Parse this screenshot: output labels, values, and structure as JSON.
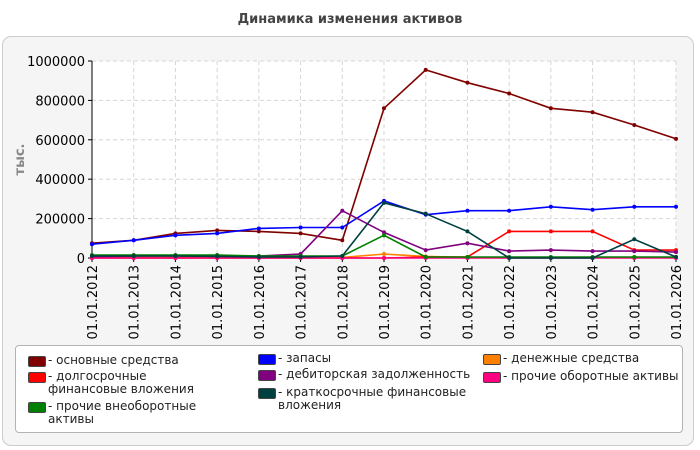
{
  "chart_data": {
    "type": "line",
    "title": "Динамика изменения активов",
    "ylabel": "тыс.",
    "xlabel": "",
    "ylim": [
      0,
      1000000
    ],
    "yticks": [
      0,
      200000,
      400000,
      600000,
      800000,
      1000000
    ],
    "grid": true,
    "legend_position": "bottom",
    "categories": [
      "01.01.2012",
      "01.01.2013",
      "01.01.2014",
      "01.01.2015",
      "01.01.2016",
      "01.01.2017",
      "01.01.2018",
      "01.01.2019",
      "01.01.2020",
      "01.01.2021",
      "01.01.2022",
      "01.01.2023",
      "01.01.2024",
      "01.01.2025",
      "01.01.2026"
    ],
    "series": [
      {
        "name": "- основные средства",
        "color": "#800000",
        "values": [
          75000,
          90000,
          125000,
          140000,
          135000,
          125000,
          90000,
          760000,
          955000,
          890000,
          835000,
          760000,
          740000,
          675000,
          605000
        ]
      },
      {
        "name": "- запасы",
        "color": "#0000ff",
        "values": [
          70000,
          90000,
          115000,
          125000,
          150000,
          155000,
          155000,
          290000,
          220000,
          240000,
          240000,
          260000,
          245000,
          260000,
          260000
        ]
      },
      {
        "name": "- денежные средства",
        "color": "#ff8000",
        "values": [
          3000,
          3000,
          3000,
          3000,
          3000,
          3000,
          3000,
          20000,
          8000,
          3000,
          3000,
          3000,
          3000,
          3000,
          3000
        ]
      },
      {
        "name": "- долгосрочные финансовые вложения",
        "color": "#ff0000",
        "values": [
          0,
          0,
          0,
          0,
          0,
          0,
          0,
          0,
          5000,
          5000,
          135000,
          135000,
          135000,
          40000,
          40000
        ]
      },
      {
        "name": "- дебиторская задолженность",
        "color": "#800080",
        "values": [
          5000,
          10000,
          10000,
          10000,
          10000,
          20000,
          240000,
          130000,
          40000,
          75000,
          35000,
          40000,
          35000,
          35000,
          30000
        ]
      },
      {
        "name": "- прочие оборотные активы",
        "color": "#ff0080",
        "values": [
          0,
          0,
          0,
          0,
          0,
          0,
          0,
          0,
          0,
          0,
          0,
          0,
          0,
          0,
          0
        ]
      },
      {
        "name": "- прочие внеоборотные активы",
        "color": "#008000",
        "values": [
          15000,
          15000,
          15000,
          15000,
          10000,
          10000,
          10000,
          115000,
          5000,
          5000,
          5000,
          5000,
          5000,
          5000,
          5000
        ]
      },
      {
        "name": "- краткосрочные финансовые вложения",
        "color": "#004040",
        "values": [
          10000,
          10000,
          10000,
          8000,
          5000,
          5000,
          10000,
          280000,
          225000,
          135000,
          0,
          0,
          0,
          95000,
          5000
        ]
      }
    ]
  }
}
